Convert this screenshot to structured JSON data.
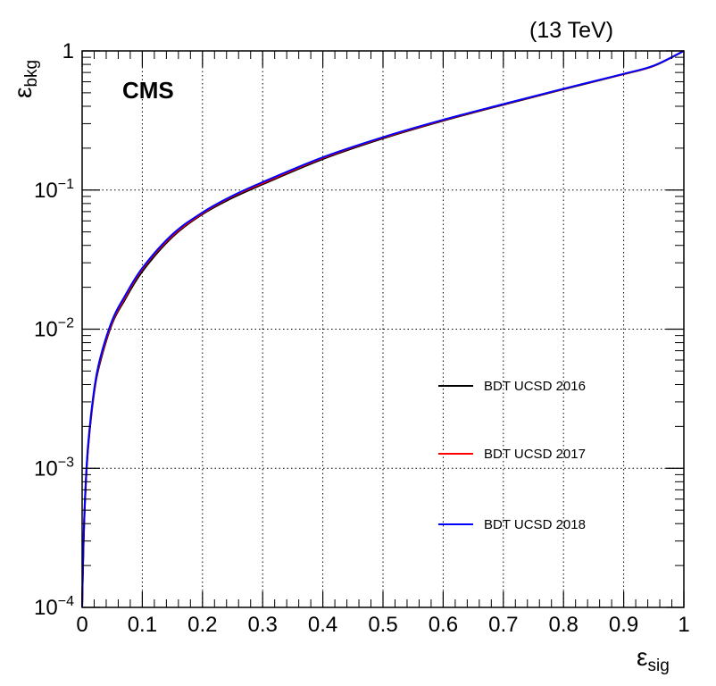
{
  "chart_data": {
    "type": "line",
    "energy_label": "(13 TeV)",
    "experiment_label": "CMS",
    "xlabel": "ε",
    "xlabel_sub": "sig",
    "ylabel": "ε",
    "ylabel_sub": "bkg",
    "xlim": [
      0,
      1
    ],
    "ylim": [
      0.0001,
      1
    ],
    "y_scale": "log",
    "grid": true,
    "legend_position": "center-right",
    "x_tick_labels": [
      "0",
      "0.1",
      "0.2",
      "0.3",
      "0.4",
      "0.5",
      "0.6",
      "0.7",
      "0.8",
      "0.9",
      "1"
    ],
    "y_tick_labels": [
      {
        "base": "1",
        "exp": ""
      },
      {
        "base": "10",
        "exp": "−1"
      },
      {
        "base": "10",
        "exp": "−2"
      },
      {
        "base": "10",
        "exp": "−3"
      },
      {
        "base": "10",
        "exp": "−4"
      }
    ],
    "series": [
      {
        "name": "BDT UCSD 2016",
        "color": "#000000",
        "x": [
          0.0,
          0.002,
          0.005,
          0.01,
          0.02,
          0.03,
          0.05,
          0.07,
          0.1,
          0.15,
          0.2,
          0.25,
          0.3,
          0.4,
          0.5,
          0.6,
          0.7,
          0.8,
          0.9,
          0.95,
          1.0
        ],
        "y": [
          0.0001,
          0.00025,
          0.0006,
          0.0014,
          0.0035,
          0.0058,
          0.011,
          0.016,
          0.026,
          0.046,
          0.067,
          0.088,
          0.11,
          0.167,
          0.235,
          0.315,
          0.41,
          0.53,
          0.68,
          0.78,
          1.0
        ]
      },
      {
        "name": "BDT UCSD 2017",
        "color": "#ff0000",
        "x": [
          0.0,
          0.002,
          0.005,
          0.01,
          0.02,
          0.03,
          0.05,
          0.07,
          0.1,
          0.15,
          0.2,
          0.25,
          0.3,
          0.4,
          0.5,
          0.6,
          0.7,
          0.8,
          0.9,
          0.95,
          1.0
        ],
        "y": [
          0.0001,
          0.00026,
          0.00062,
          0.00145,
          0.0036,
          0.006,
          0.0113,
          0.0165,
          0.027,
          0.047,
          0.068,
          0.09,
          0.112,
          0.17,
          0.238,
          0.318,
          0.413,
          0.533,
          0.682,
          0.782,
          1.0
        ]
      },
      {
        "name": "BDT UCSD 2018",
        "color": "#0000ff",
        "x": [
          0.0,
          0.002,
          0.005,
          0.01,
          0.02,
          0.03,
          0.05,
          0.07,
          0.1,
          0.15,
          0.2,
          0.25,
          0.3,
          0.4,
          0.5,
          0.6,
          0.7,
          0.8,
          0.9,
          0.95,
          1.0
        ],
        "y": [
          0.0001,
          0.00027,
          0.00065,
          0.0015,
          0.0037,
          0.0062,
          0.0116,
          0.017,
          0.0275,
          0.048,
          0.069,
          0.091,
          0.114,
          0.172,
          0.24,
          0.32,
          0.415,
          0.535,
          0.684,
          0.784,
          1.0
        ]
      }
    ]
  }
}
